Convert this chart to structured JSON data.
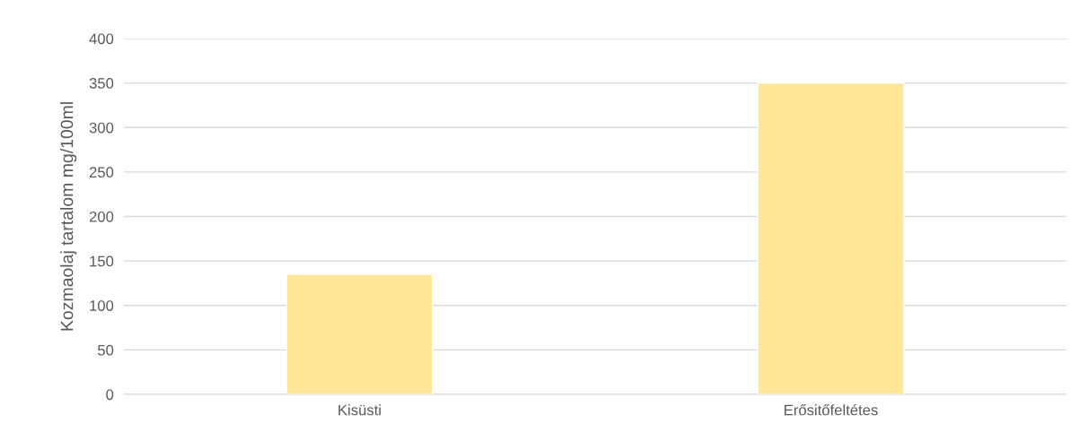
{
  "chart_data": {
    "type": "bar",
    "ylabel": "Kozmaolaj tartalom mg/100ml",
    "categories": [
      "Kisüsti",
      "Erősitőfeltétes"
    ],
    "values": [
      135,
      350
    ],
    "color": "#ffe699",
    "ylim": [
      0,
      400
    ],
    "yticks": [
      0,
      50,
      100,
      150,
      200,
      250,
      300,
      350,
      400
    ],
    "grid": "y"
  }
}
